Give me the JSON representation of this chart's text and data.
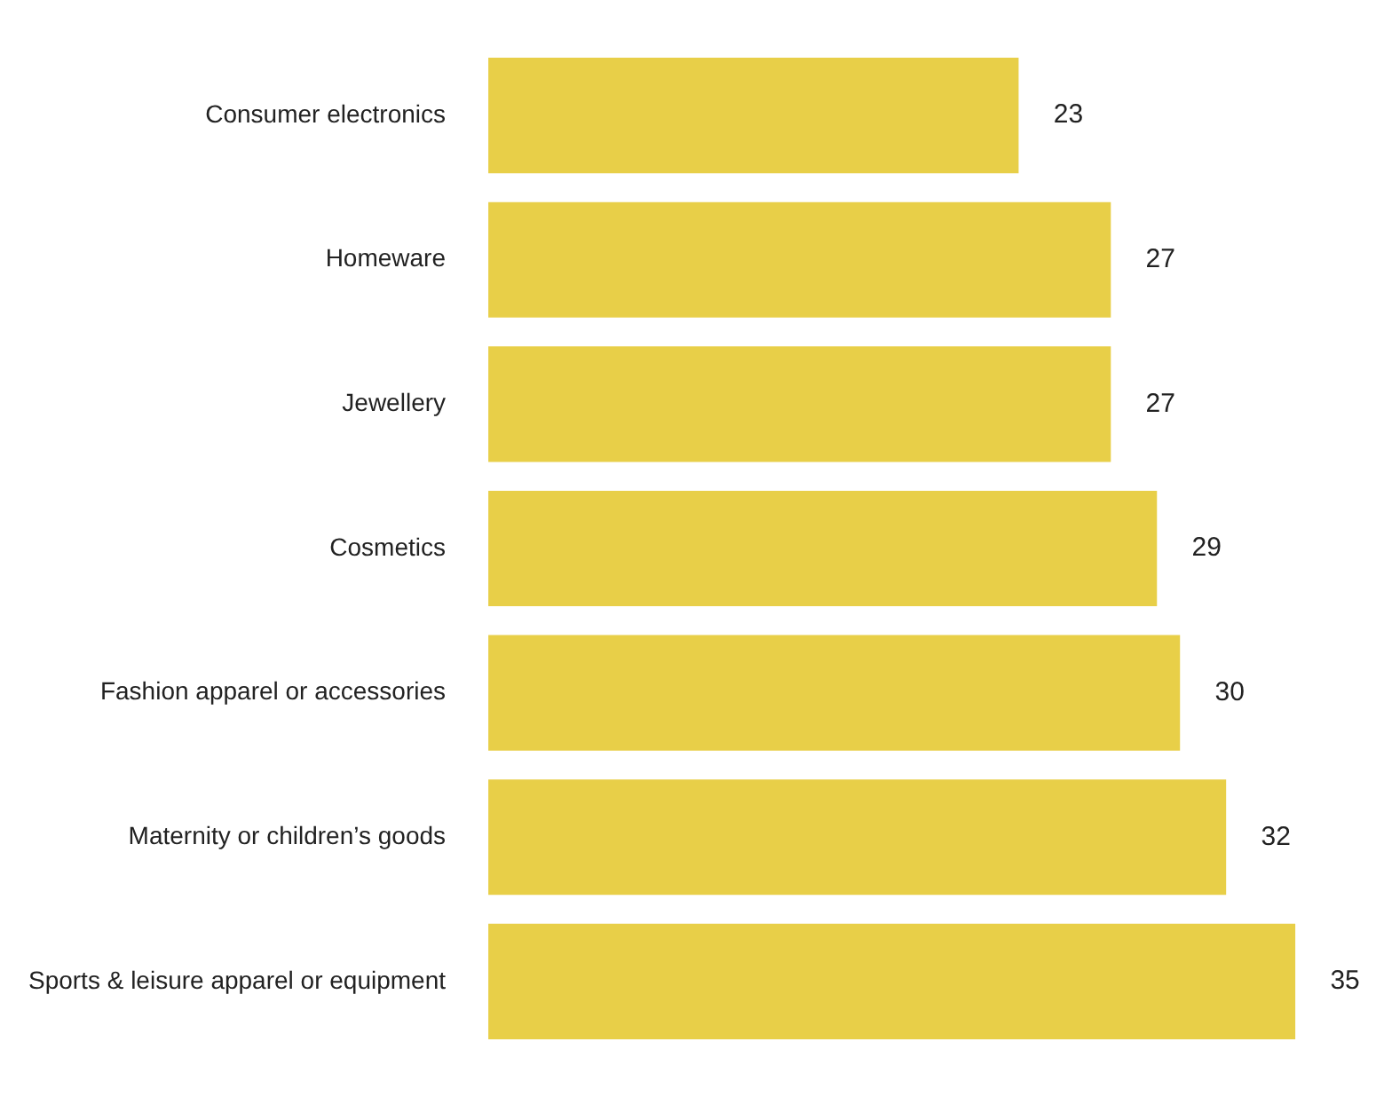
{
  "chart_data": {
    "type": "bar",
    "orientation": "horizontal",
    "categories": [
      "Consumer electronics",
      "Homeware",
      "Jewellery",
      "Cosmetics",
      "Fashion apparel or accessories",
      "Maternity or children’s goods",
      "Sports & leisure apparel or equipment"
    ],
    "values": [
      23,
      27,
      27,
      29,
      30,
      32,
      35
    ],
    "color": "#e8cf48",
    "data_labels": true
  }
}
